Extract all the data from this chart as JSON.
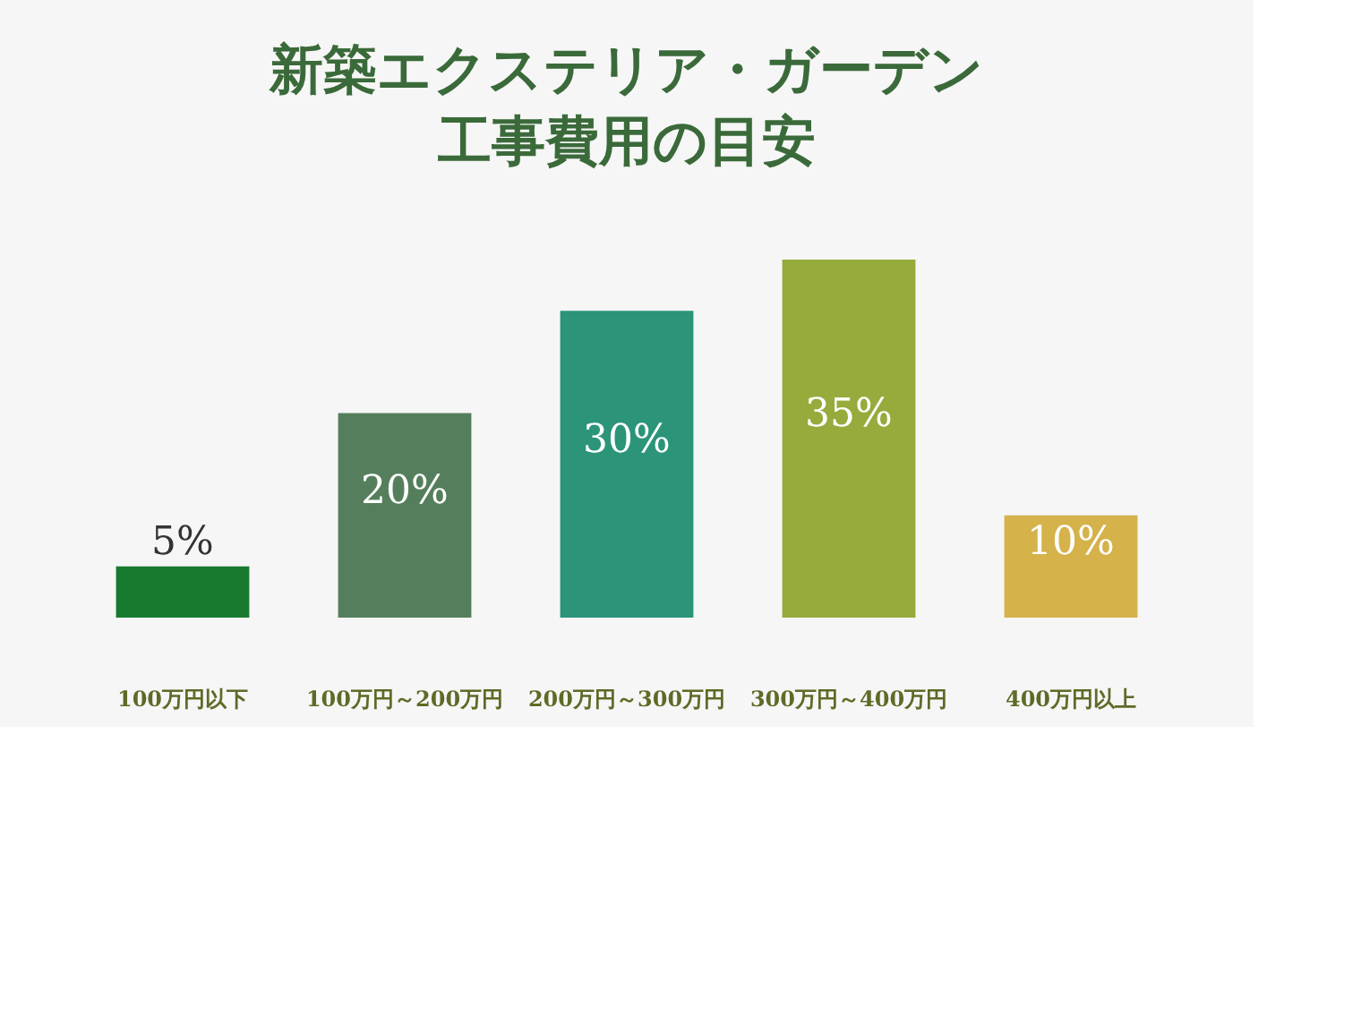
{
  "chart_data": {
    "type": "bar",
    "title": [
      "新築エクステリア・ガーデン",
      "工事費用の目安"
    ],
    "categories": [
      "100万円以下",
      "100万円～200万円",
      "200万円～300万円",
      "300万円～400万円",
      "400万円以上"
    ],
    "values": [
      5,
      20,
      30,
      35,
      10
    ],
    "value_labels": [
      "5%",
      "20%",
      "30%",
      "35%",
      "10%"
    ],
    "colors": [
      "#177a2e",
      "#557f5c",
      "#2b9479",
      "#95ab3b",
      "#d5b24a"
    ],
    "grid": false
  }
}
